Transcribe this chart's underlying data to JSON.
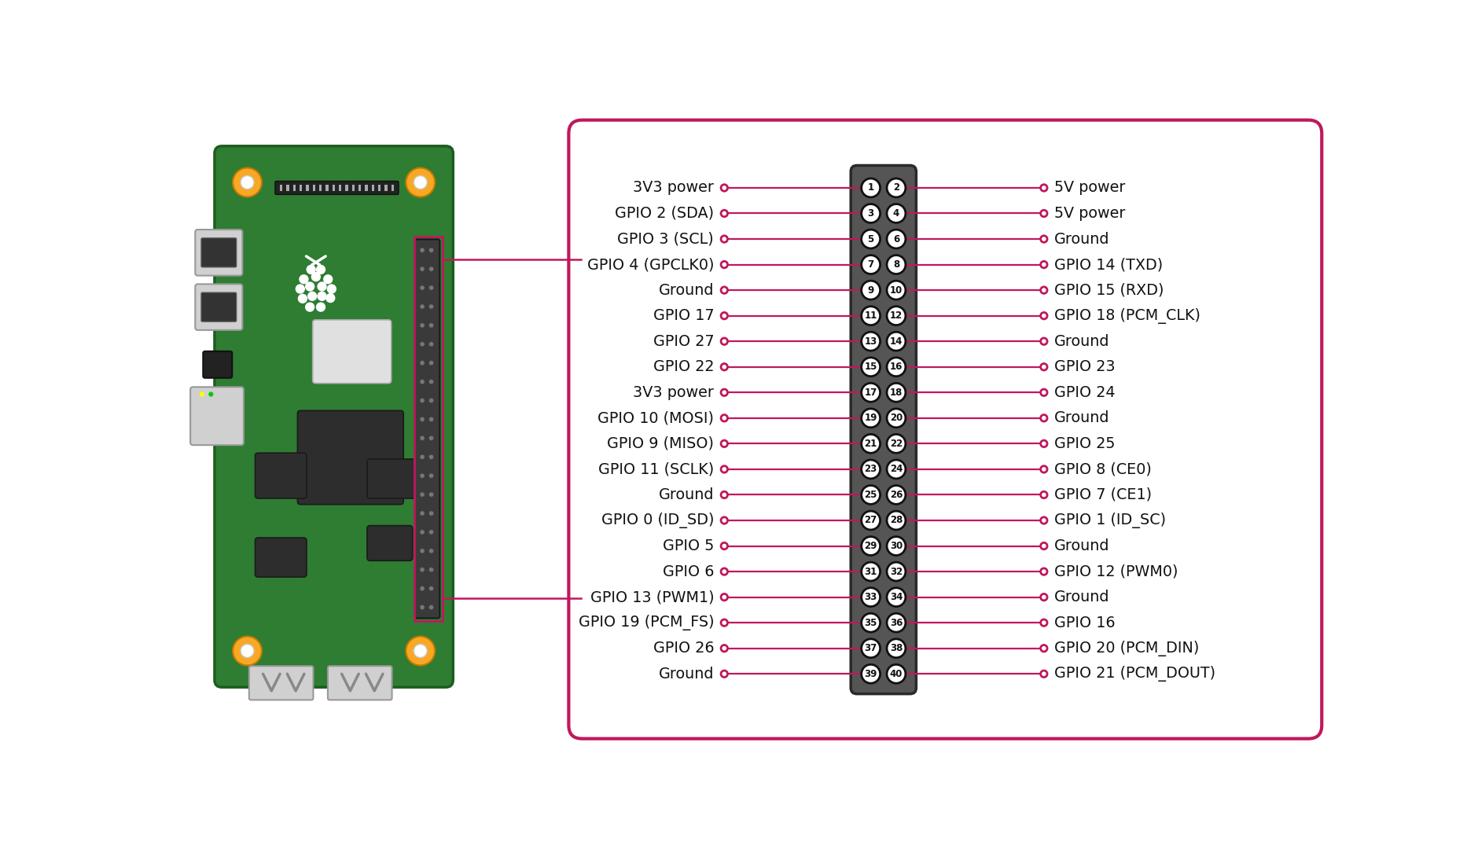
{
  "bg_color": "#ffffff",
  "border_color": "#c0185c",
  "connector_bg": "#555555",
  "connector_border": "#2a2a2a",
  "pin_circle_fill": "#ffffff",
  "pin_circle_border": "#111111",
  "line_color": "#c0185c",
  "text_color": "#111111",
  "left_labels": [
    "3V3 power",
    "GPIO 2 (SDA)",
    "GPIO 3 (SCL)",
    "GPIO 4 (GPCLK0)",
    "Ground",
    "GPIO 17",
    "GPIO 27",
    "GPIO 22",
    "3V3 power",
    "GPIO 10 (MOSI)",
    "GPIO 9 (MISO)",
    "GPIO 11 (SCLK)",
    "Ground",
    "GPIO 0 (ID_SD)",
    "GPIO 5",
    "GPIO 6",
    "GPIO 13 (PWM1)",
    "GPIO 19 (PCM_FS)",
    "GPIO 26",
    "Ground"
  ],
  "right_labels": [
    "5V power",
    "5V power",
    "Ground",
    "GPIO 14 (TXD)",
    "GPIO 15 (RXD)",
    "GPIO 18 (PCM_CLK)",
    "Ground",
    "GPIO 23",
    "GPIO 24",
    "Ground",
    "GPIO 25",
    "GPIO 8 (CE0)",
    "GPIO 7 (CE1)",
    "GPIO 1 (ID_SC)",
    "Ground",
    "GPIO 12 (PWM0)",
    "Ground",
    "GPIO 16",
    "GPIO 20 (PCM_DIN)",
    "GPIO 21 (PCM_DOUT)"
  ],
  "left_pin_numbers": [
    1,
    3,
    5,
    7,
    9,
    11,
    13,
    15,
    17,
    19,
    21,
    23,
    25,
    27,
    29,
    31,
    33,
    35,
    37,
    39
  ],
  "right_pin_numbers": [
    2,
    4,
    6,
    8,
    10,
    12,
    14,
    16,
    18,
    20,
    22,
    24,
    26,
    28,
    30,
    32,
    34,
    36,
    38,
    40
  ],
  "board_green": "#2e7d32",
  "board_green_dark": "#1b5e20",
  "screw_yellow": "#f9a825",
  "screw_yellow_dark": "#c17900",
  "chip_dark": "#2d2d2d",
  "chip_light": "#e0e0e0",
  "usb_color": "#d0d0d0",
  "port_gray": "#b0b0b0"
}
